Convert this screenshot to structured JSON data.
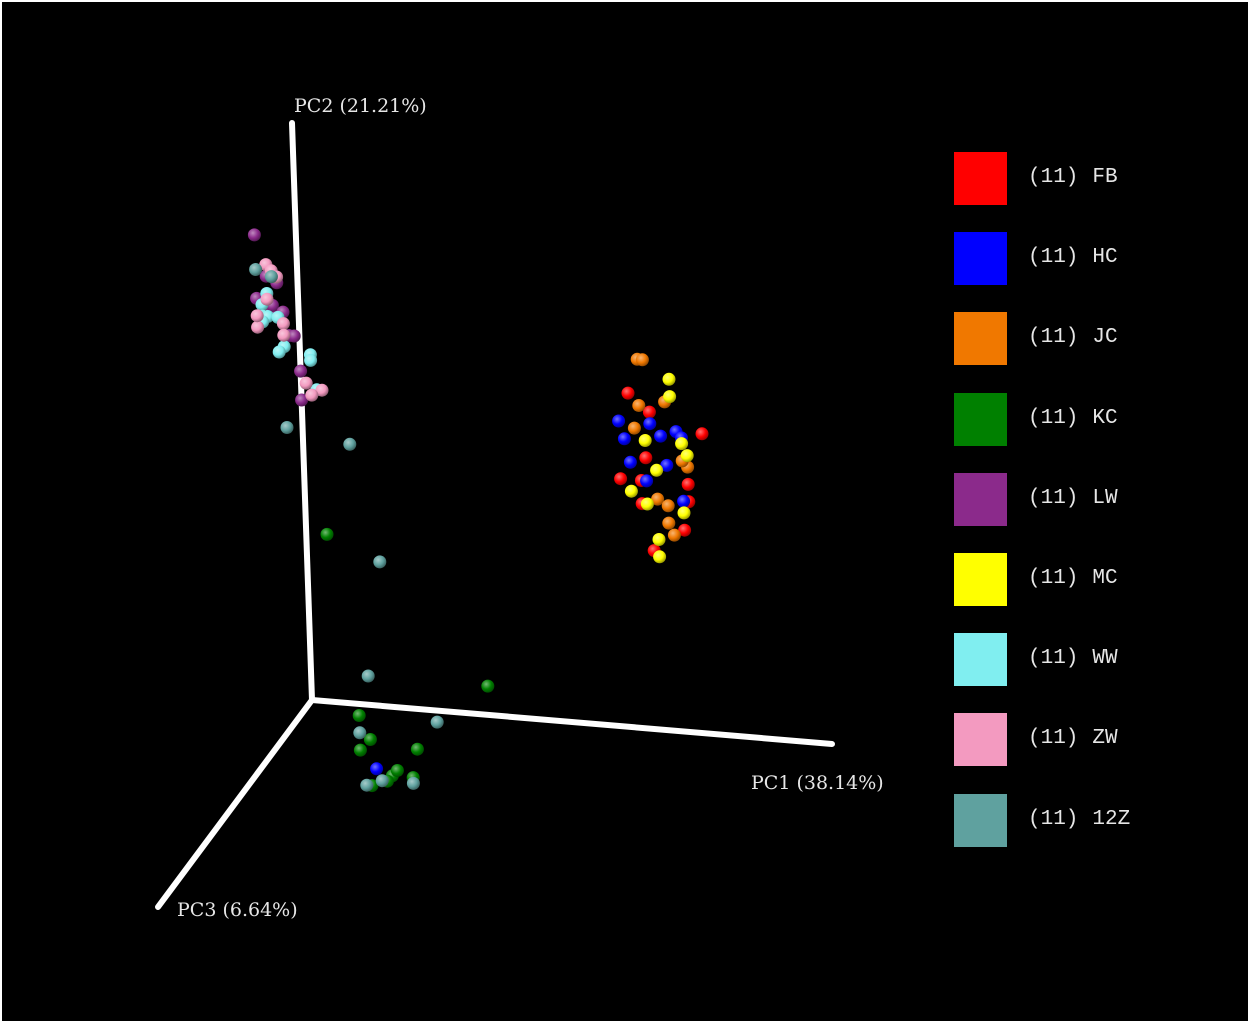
{
  "chart_data": {
    "type": "scatter",
    "projection": "3d",
    "title": "",
    "axes": {
      "pc1": {
        "label": "PC1 (38.14%)"
      },
      "pc2": {
        "label": "PC2 (21.21%)"
      },
      "pc3": {
        "label": "PC3 (6.64%)"
      }
    },
    "grid": false,
    "legend_position": "right",
    "series": [
      {
        "name": "FB",
        "count": "(11)",
        "color": "#ff0000",
        "points": [
          [
            0.61,
            0.43,
            0
          ],
          [
            0.67,
            0.55,
            0
          ],
          [
            0.63,
            0.58,
            0
          ],
          [
            0.77,
            0.52,
            0
          ],
          [
            0.66,
            0.47,
            0
          ],
          [
            0.65,
            0.39,
            0
          ],
          [
            0.74,
            0.43,
            0
          ],
          [
            0.74,
            0.4,
            0
          ],
          [
            0.67,
            0.31,
            0
          ],
          [
            0.73,
            0.35,
            0
          ],
          [
            0.65,
            0.43,
            0
          ]
        ]
      },
      {
        "name": "HC",
        "count": "(11)",
        "color": "#0000ff",
        "points": [
          [
            0.61,
            0.53,
            0
          ],
          [
            0.67,
            0.53,
            0
          ],
          [
            0.69,
            0.51,
            0
          ],
          [
            0.62,
            0.5,
            0
          ],
          [
            0.72,
            0.52,
            0
          ],
          [
            0.73,
            0.51,
            0
          ],
          [
            0.63,
            0.46,
            0
          ],
          [
            0.73,
            0.4,
            0
          ],
          [
            0.66,
            0.43,
            0
          ],
          [
            0.12,
            -0.11,
            0
          ],
          [
            0.7,
            0.46,
            0
          ]
        ]
      },
      {
        "name": "JC",
        "count": "(11)",
        "color": "#f07800",
        "points": [
          [
            0.65,
            0.64,
            0
          ],
          [
            0.66,
            0.64,
            0
          ],
          [
            0.64,
            0.52,
            0
          ],
          [
            0.7,
            0.57,
            0
          ],
          [
            0.65,
            0.56,
            0
          ],
          [
            0.74,
            0.46,
            0
          ],
          [
            0.68,
            0.4,
            0
          ],
          [
            0.7,
            0.39,
            0
          ],
          [
            0.7,
            0.36,
            0
          ],
          [
            0.73,
            0.47,
            0
          ],
          [
            0.71,
            0.34,
            0
          ]
        ]
      },
      {
        "name": "KC",
        "count": "(11)",
        "color": "#008000",
        "points": [
          [
            0.04,
            0.29,
            0
          ],
          [
            0.34,
            0.05,
            0
          ],
          [
            0.09,
            -0.02,
            0
          ],
          [
            0.11,
            -0.06,
            0
          ],
          [
            0.09,
            -0.08,
            0
          ],
          [
            0.2,
            -0.07,
            0
          ],
          [
            0.15,
            -0.12,
            0
          ],
          [
            0.14,
            -0.13,
            0
          ],
          [
            0.16,
            -0.11,
            0
          ],
          [
            0.11,
            -0.14,
            0
          ],
          [
            0.19,
            -0.12,
            0
          ]
        ]
      },
      {
        "name": "LW",
        "count": "(11)",
        "color": "#8b2a8b",
        "points": [
          [
            -0.08,
            0.8,
            0
          ],
          [
            -0.06,
            0.73,
            0
          ],
          [
            -0.04,
            0.72,
            0
          ],
          [
            -0.08,
            0.69,
            0
          ],
          [
            -0.05,
            0.67,
            0
          ],
          [
            -0.05,
            0.68,
            0
          ],
          [
            -0.03,
            0.67,
            0
          ],
          [
            -0.02,
            0.63,
            0
          ],
          [
            -0.01,
            0.63,
            0
          ],
          [
            0.0,
            0.57,
            0
          ],
          [
            0.0,
            0.52,
            0
          ]
        ]
      },
      {
        "name": "MC",
        "count": "(11)",
        "color": "#ffff00",
        "points": [
          [
            0.71,
            0.61,
            0
          ],
          [
            0.71,
            0.58,
            0
          ],
          [
            0.66,
            0.5,
            0
          ],
          [
            0.68,
            0.45,
            0
          ],
          [
            0.74,
            0.48,
            0
          ],
          [
            0.73,
            0.5,
            0
          ],
          [
            0.63,
            0.41,
            0
          ],
          [
            0.66,
            0.39,
            0
          ],
          [
            0.73,
            0.38,
            0
          ],
          [
            0.68,
            0.33,
            0
          ],
          [
            0.68,
            0.3,
            0
          ]
        ]
      },
      {
        "name": "WW",
        "count": "(11)",
        "color": "#80eef0",
        "points": [
          [
            -0.07,
            0.68,
            0
          ],
          [
            -0.06,
            0.7,
            0
          ],
          [
            -0.07,
            0.66,
            0
          ],
          [
            -0.06,
            0.66,
            0
          ],
          [
            -0.04,
            0.66,
            0
          ],
          [
            -0.07,
            0.65,
            0
          ],
          [
            -0.03,
            0.61,
            0
          ],
          [
            -0.04,
            0.6,
            0
          ],
          [
            0.02,
            0.6,
            0
          ],
          [
            0.02,
            0.59,
            0
          ],
          [
            0.03,
            0.54,
            0
          ]
        ]
      },
      {
        "name": "ZW",
        "count": "(11)",
        "color": "#f39ac0",
        "points": [
          [
            -0.06,
            0.75,
            0
          ],
          [
            -0.05,
            0.74,
            0
          ],
          [
            -0.04,
            0.73,
            0
          ],
          [
            -0.08,
            0.64,
            0
          ],
          [
            -0.03,
            0.65,
            0
          ],
          [
            -0.03,
            0.63,
            0
          ],
          [
            0.01,
            0.55,
            0
          ],
          [
            0.04,
            0.54,
            0
          ],
          [
            0.02,
            0.53,
            0
          ],
          [
            -0.08,
            0.66,
            0
          ],
          [
            -0.06,
            0.69,
            0
          ]
        ]
      },
      {
        "name": "12Z",
        "count": "(11)",
        "color": "#5fa19f",
        "points": [
          [
            -0.08,
            0.74,
            0
          ],
          [
            -0.05,
            0.73,
            0
          ],
          [
            -0.03,
            0.47,
            0
          ],
          [
            0.09,
            0.45,
            0
          ],
          [
            0.14,
            0.25,
            0
          ],
          [
            0.11,
            0.05,
            0
          ],
          [
            0.24,
            -0.02,
            0
          ],
          [
            0.09,
            -0.05,
            0
          ],
          [
            0.13,
            -0.13,
            0
          ],
          [
            0.19,
            -0.13,
            0
          ],
          [
            0.1,
            -0.14,
            0
          ]
        ]
      }
    ]
  }
}
